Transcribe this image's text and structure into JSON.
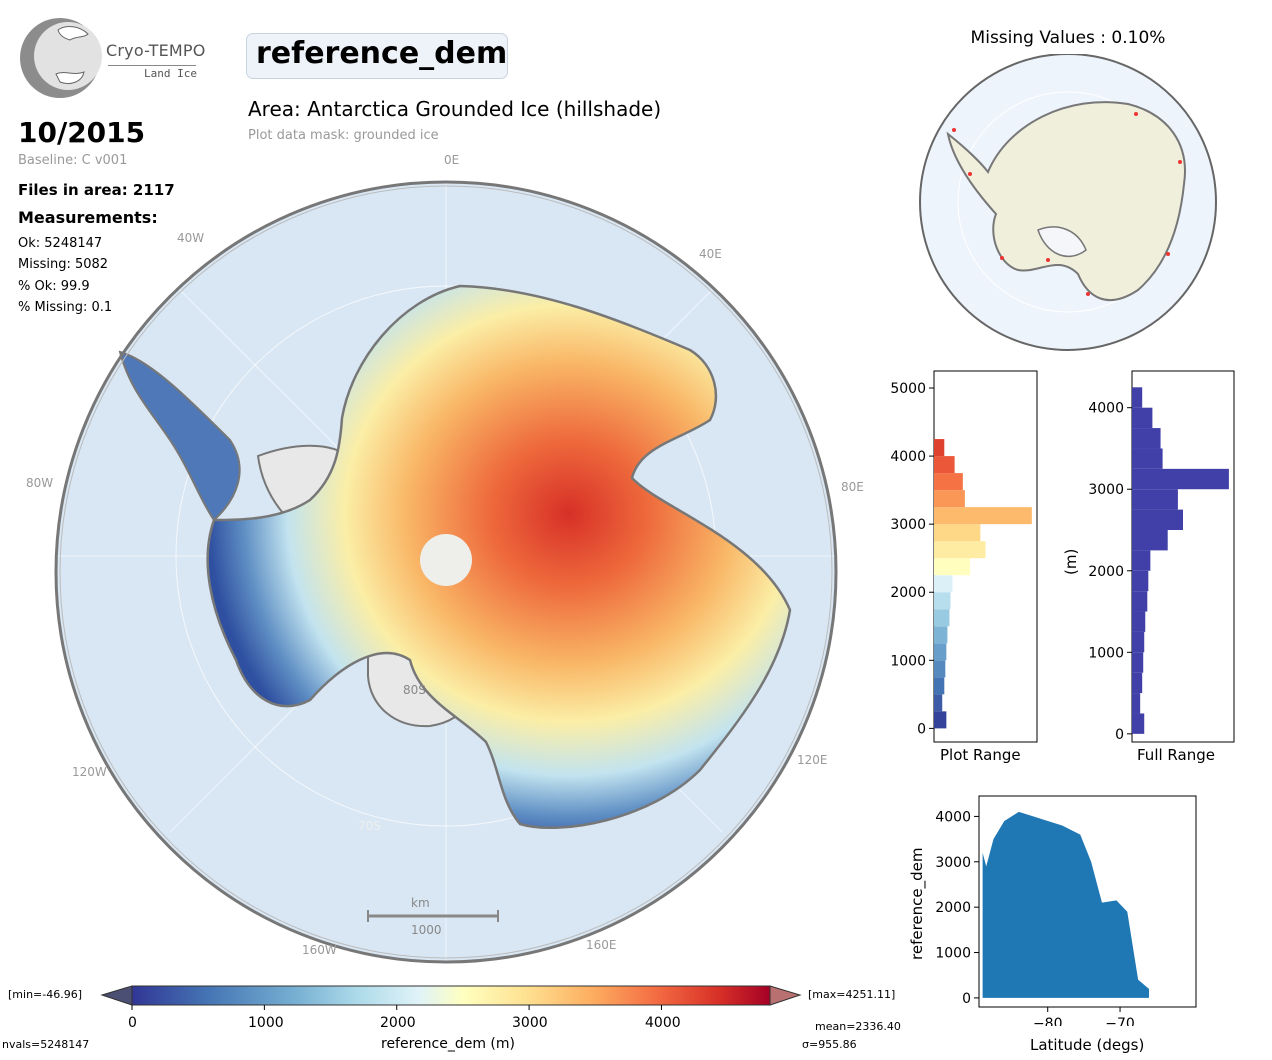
{
  "logo": {
    "name": "Cryo-TEMPO",
    "subtitle": "Land Ice"
  },
  "variable_name": "reference_dem",
  "area_title": "Area: Antarctica Grounded Ice (hillshade)",
  "mask_note": "Plot data mask: grounded ice",
  "date": "10/2015",
  "baseline": "Baseline: C v001",
  "files_in_area": "Files in area: 2117",
  "measurements_title": "Measurements:",
  "measurements": [
    "Ok: 5248147",
    "Missing: 5082",
    "% Ok: 99.9",
    "% Missing: 0.1"
  ],
  "missing_values_title": "Missing Values : 0.10%",
  "map": {
    "lon_labels": [
      "0E",
      "40E",
      "80E",
      "120E",
      "160E",
      "160W",
      "120W",
      "80W",
      "40W"
    ],
    "lat_labels": [
      "80S",
      "70S"
    ],
    "scale_unit": "km",
    "scale_value": "1000"
  },
  "colorbar": {
    "label": "reference_dem (m)",
    "ticks": [
      "0",
      "1000",
      "2000",
      "3000",
      "4000"
    ],
    "min_label": "[min=-46.96]",
    "max_label": "[max=4251.11]",
    "nvals": "nvals=5248147",
    "mean": "mean=2336.40",
    "sigma": "σ=955.86"
  },
  "chart_data": [
    {
      "type": "bar",
      "orientation": "horizontal",
      "xlabel": "Plot Range",
      "ylabel": "",
      "ylim": [
        -200,
        5250
      ],
      "yticks": [
        "0",
        "1000",
        "2000",
        "3000",
        "4000",
        "5000"
      ],
      "bin_edges": [
        0,
        250,
        500,
        750,
        1000,
        1250,
        1500,
        1750,
        2000,
        2250,
        2500,
        2750,
        3000,
        3250,
        3500,
        3750,
        4000
      ],
      "relative_counts": [
        0.12,
        0.08,
        0.1,
        0.11,
        0.12,
        0.13,
        0.15,
        0.16,
        0.18,
        0.35,
        0.5,
        0.45,
        0.95,
        0.3,
        0.28,
        0.2,
        0.1
      ],
      "colormap": "RdYlBu_r"
    },
    {
      "type": "bar",
      "orientation": "horizontal",
      "xlabel": "Full Range",
      "ylabel": "(m)",
      "ylim": [
        -100,
        4450
      ],
      "yticks": [
        "0",
        "1000",
        "2000",
        "3000",
        "4000"
      ],
      "bin_edges": [
        0,
        250,
        500,
        750,
        1000,
        1250,
        1500,
        1750,
        2000,
        2250,
        2500,
        2750,
        3000,
        3250,
        3500,
        3750,
        4000
      ],
      "relative_counts": [
        0.12,
        0.08,
        0.1,
        0.11,
        0.12,
        0.13,
        0.15,
        0.16,
        0.18,
        0.35,
        0.5,
        0.45,
        0.95,
        0.3,
        0.28,
        0.2,
        0.1
      ],
      "color": "#4040a8"
    },
    {
      "type": "scatter",
      "xlabel": "Latitude (degs)",
      "ylabel": "reference_dem",
      "xlim": [
        -89.5,
        -59.5
      ],
      "ylim": [
        -200,
        4450
      ],
      "xticks": [
        "−80",
        "−70"
      ],
      "yticks": [
        "0",
        "1000",
        "2000",
        "3000",
        "4000"
      ],
      "color": "#1f77b4",
      "upper_envelope": [
        [
          -89,
          3200
        ],
        [
          -88.5,
          2900
        ],
        [
          -87.5,
          3500
        ],
        [
          -86,
          3900
        ],
        [
          -84,
          4100
        ],
        [
          -82,
          4000
        ],
        [
          -80,
          3900
        ],
        [
          -78,
          3800
        ],
        [
          -75.5,
          3600
        ],
        [
          -74,
          3000
        ],
        [
          -72.5,
          2100
        ],
        [
          -70.5,
          2150
        ],
        [
          -69,
          1900
        ],
        [
          -67.5,
          400
        ],
        [
          -66,
          200
        ]
      ],
      "lower_bound": 0
    }
  ]
}
